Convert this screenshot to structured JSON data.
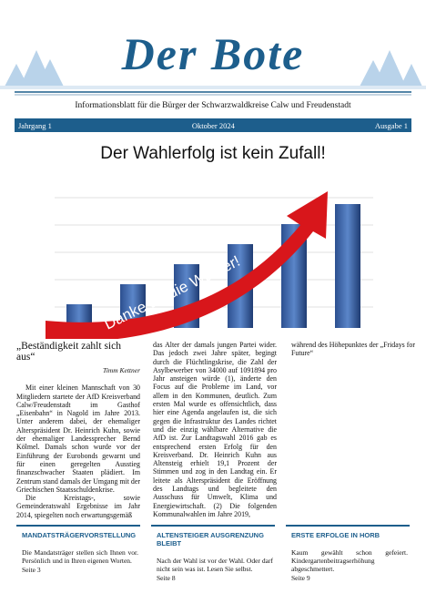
{
  "header": {
    "title": "Der Bote",
    "subtitle": "Informationsblatt für die Bürger der Schwarzwaldkreise Calw und Freudenstadt",
    "issue_bar": [
      "Jahrgang 1",
      "Oktober 2024",
      "Ausgabe 1"
    ]
  },
  "headline": "Der Wahlerfolg ist kein Zufall!",
  "image_caption": "Danke an die Wähler!",
  "article": {
    "heading": "„Beständigkeit zahlt sich aus“",
    "author": "Timm Kettner",
    "paragraphs": [
      "Mit einer kleinen Mannschaft von 30 Mitgliedern startete der AfD Kreisverband Calw/Freudenstadt im Gasthof „Eisenbahn“ in Nagold im Jahre 2013. Unter anderem dabei, der ehemaliger Alterspräsident Dr. Heinrich Kuhn, sowie der ehemaliger Landessprecher Bernd Kölmel. Damals schon wurde vor der Einführung der Eurobonds gewarnt und für einen geregelten Ausstieg finanzschwacher Staaten plädiert. Im Zentrum stand damals der Umgang mit der Griechischen Staatsschuldenkrise.",
      "Die Kreistags-, sowie Gemeinderatswahl Ergebnisse im Jahr 2014, spiegelten noch erwartungsgemäß das Alter der damals jungen Partei wider. Das jedoch zwei Jahre später, begingt durch die Flüchtlingskrise, die Zahl der Asylbewerber von 34000 auf 1091894 pro Jahr ansteigen würde (1), änderte den Focus auf die Probleme im Land, vor allem in den Kommunen, deutlich. Zum ersten Mal wurde es offensichtlich, dass hier eine Agenda angelaufen ist, die sich gegen die Infrastruktur des Landes richtet und die einzig wählbare Alternative die AfD ist. Zur Landtagswahl 2016 gab es entsprechend ersten Erfolg für den Kreisverband. Dr. Heinrich Kuhn aus Altensteig erhielt 19,1 Prozent der Stimmen und zog in den Landtag ein. Er leitete als Alterspräsident die Eröffnung des Landtags und begleitete den Ausschuss für Umwelt, Klima und Energiewirtschaft. (2) Die folgenden Kommunalwahlen im Jahre 2019, während des Höhepunktes der „Fridays for Future“"
    ]
  },
  "teasers": [
    {
      "title": "MANDATSTRÄGERVORSTELLUNG",
      "text": "Die Mandatsträger stellen sich Ihnen vor. Persönlich und in Ihren eigenen Worten.",
      "page": "Seite 3"
    },
    {
      "title": "ALTENSTEIGER AUSGRENZUNG BLEIBT",
      "text": "Nach der Wahl ist vor der Wahl. Oder darf nicht sein was ist. Lesen Sie selbst.",
      "page": "Seite 8"
    },
    {
      "title": "ERSTE ERFOLGE IN HORB",
      "text": "Kaum gewählt schon gefeiert. Kindergartenbeitragserhöhung abgeschmettert.",
      "page": "Seite 9"
    }
  ]
}
